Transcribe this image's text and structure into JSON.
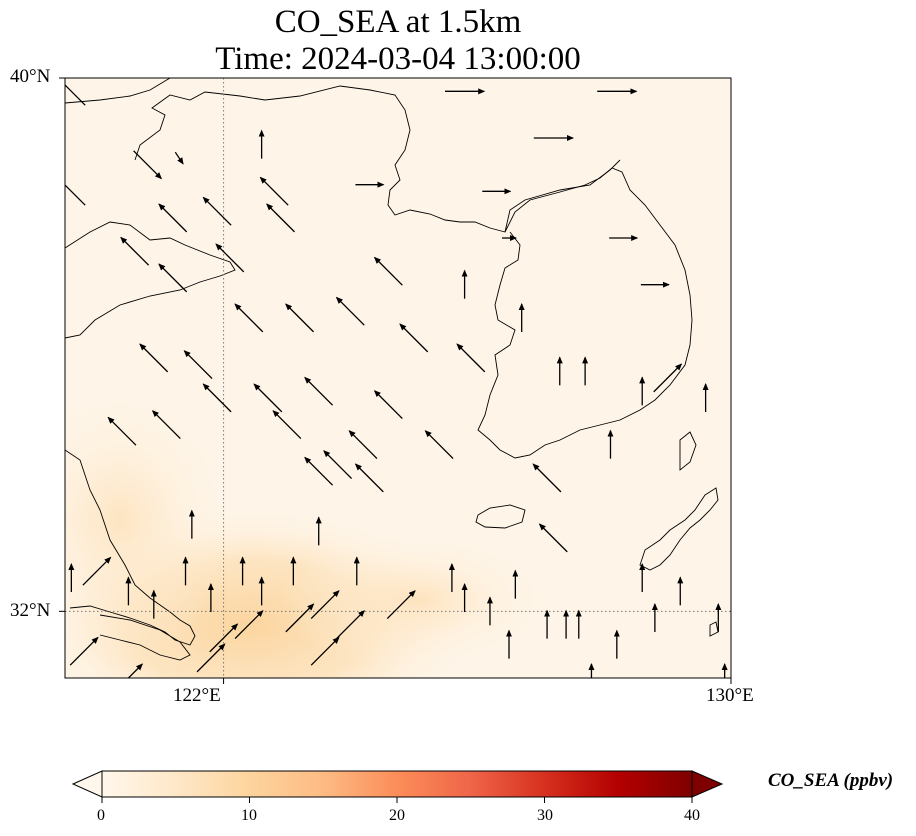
{
  "title": {
    "line1": "CO_SEA at 1.5km",
    "line2": "Time: 2024-03-04 13:00:00"
  },
  "map": {
    "extent": {
      "lon_min": 119.5,
      "lon_max": 130,
      "lat_min": 31.0,
      "lat_max": 40.0
    },
    "gridlines": {
      "lons": [
        122
      ],
      "lats": [
        32
      ],
      "style": "dotted"
    },
    "lon_ticks": [
      {
        "value": 122,
        "label": "122°E"
      },
      {
        "value": 130,
        "label": "130°E"
      }
    ],
    "lat_ticks": [
      {
        "value": 40,
        "label": "40°N"
      },
      {
        "value": 32,
        "label": "32°N"
      }
    ],
    "field_colors": {
      "ocean_background": "#fef5e8",
      "elevated_plume": "#fde0b6",
      "peak_plume": "#fbd39b"
    },
    "coastline_color": "#000000",
    "wind_vectors": [
      {
        "lon": 119.6,
        "lat": 39.8,
        "u": -1,
        "v": 1
      },
      {
        "lon": 122.6,
        "lat": 39.0,
        "u": 0,
        "v": 1
      },
      {
        "lon": 125.8,
        "lat": 39.8,
        "u": 3,
        "v": 0
      },
      {
        "lon": 128.2,
        "lat": 39.8,
        "u": 2,
        "v": 0
      },
      {
        "lon": 127.2,
        "lat": 39.1,
        "u": 2,
        "v": 0
      },
      {
        "lon": 119.6,
        "lat": 38.3,
        "u": -1,
        "v": 1
      },
      {
        "lon": 120.8,
        "lat": 38.7,
        "u": 1,
        "v": -1
      },
      {
        "lon": 121.3,
        "lat": 38.8,
        "u": 0.2,
        "v": -0.3
      },
      {
        "lon": 122.8,
        "lat": 38.3,
        "u": -1,
        "v": 1
      },
      {
        "lon": 124.3,
        "lat": 38.4,
        "u": 1,
        "v": 0
      },
      {
        "lon": 126.3,
        "lat": 38.3,
        "u": 1,
        "v": 0
      },
      {
        "lon": 121.2,
        "lat": 37.9,
        "u": -1,
        "v": 1
      },
      {
        "lon": 121.9,
        "lat": 38.0,
        "u": -1,
        "v": 1
      },
      {
        "lon": 122.9,
        "lat": 37.9,
        "u": -1,
        "v": 1
      },
      {
        "lon": 126.5,
        "lat": 37.6,
        "u": 0.5,
        "v": 0
      },
      {
        "lon": 128.3,
        "lat": 37.6,
        "u": 1,
        "v": 0
      },
      {
        "lon": 120.6,
        "lat": 37.4,
        "u": -1,
        "v": 1
      },
      {
        "lon": 122.1,
        "lat": 37.3,
        "u": -1,
        "v": 1
      },
      {
        "lon": 121.2,
        "lat": 37.0,
        "u": -1,
        "v": 1
      },
      {
        "lon": 124.6,
        "lat": 37.1,
        "u": -1,
        "v": 1
      },
      {
        "lon": 125.8,
        "lat": 36.9,
        "u": 0,
        "v": 1
      },
      {
        "lon": 128.8,
        "lat": 36.9,
        "u": 1,
        "v": 0
      },
      {
        "lon": 122.4,
        "lat": 36.4,
        "u": -1,
        "v": 1
      },
      {
        "lon": 123.2,
        "lat": 36.4,
        "u": -1,
        "v": 1
      },
      {
        "lon": 124.0,
        "lat": 36.5,
        "u": -1,
        "v": 1
      },
      {
        "lon": 125.0,
        "lat": 36.1,
        "u": -1,
        "v": 1
      },
      {
        "lon": 126.7,
        "lat": 36.4,
        "u": 0,
        "v": 1
      },
      {
        "lon": 120.9,
        "lat": 35.8,
        "u": -1,
        "v": 1
      },
      {
        "lon": 121.6,
        "lat": 35.7,
        "u": -1,
        "v": 1
      },
      {
        "lon": 125.9,
        "lat": 35.8,
        "u": -1,
        "v": 1
      },
      {
        "lon": 127.3,
        "lat": 35.6,
        "u": 0,
        "v": 1
      },
      {
        "lon": 127.7,
        "lat": 35.6,
        "u": 0,
        "v": 1
      },
      {
        "lon": 129.0,
        "lat": 35.5,
        "u": 1,
        "v": 1
      },
      {
        "lon": 121.9,
        "lat": 35.2,
        "u": -1,
        "v": 1
      },
      {
        "lon": 122.7,
        "lat": 35.2,
        "u": -1,
        "v": 1
      },
      {
        "lon": 123.5,
        "lat": 35.3,
        "u": -1,
        "v": 1
      },
      {
        "lon": 124.6,
        "lat": 35.1,
        "u": -1,
        "v": 1
      },
      {
        "lon": 128.6,
        "lat": 35.3,
        "u": 0,
        "v": 1
      },
      {
        "lon": 129.6,
        "lat": 35.2,
        "u": 0,
        "v": 1
      },
      {
        "lon": 120.4,
        "lat": 34.7,
        "u": -1,
        "v": 1
      },
      {
        "lon": 121.1,
        "lat": 34.8,
        "u": -1,
        "v": 1
      },
      {
        "lon": 123.0,
        "lat": 34.8,
        "u": -1,
        "v": 1
      },
      {
        "lon": 124.2,
        "lat": 34.5,
        "u": -1,
        "v": 1
      },
      {
        "lon": 125.4,
        "lat": 34.5,
        "u": -1,
        "v": 1
      },
      {
        "lon": 128.1,
        "lat": 34.5,
        "u": 0,
        "v": 1
      },
      {
        "lon": 123.5,
        "lat": 34.1,
        "u": -1,
        "v": 1
      },
      {
        "lon": 123.8,
        "lat": 34.2,
        "u": -1,
        "v": 1
      },
      {
        "lon": 124.3,
        "lat": 34.0,
        "u": -1,
        "v": 1
      },
      {
        "lon": 127.1,
        "lat": 34.0,
        "u": -1,
        "v": 1
      },
      {
        "lon": 121.5,
        "lat": 33.3,
        "u": 0,
        "v": 1
      },
      {
        "lon": 123.5,
        "lat": 33.2,
        "u": 0,
        "v": 1
      },
      {
        "lon": 127.2,
        "lat": 33.1,
        "u": -1,
        "v": 1
      },
      {
        "lon": 121.4,
        "lat": 32.6,
        "u": 0,
        "v": 1
      },
      {
        "lon": 122.3,
        "lat": 32.6,
        "u": 0,
        "v": 1
      },
      {
        "lon": 123.1,
        "lat": 32.6,
        "u": 0,
        "v": 1
      },
      {
        "lon": 124.1,
        "lat": 32.6,
        "u": 0,
        "v": 1
      },
      {
        "lon": 125.6,
        "lat": 32.5,
        "u": 0,
        "v": 1
      },
      {
        "lon": 126.6,
        "lat": 32.4,
        "u": 0,
        "v": 1
      },
      {
        "lon": 128.6,
        "lat": 32.5,
        "u": 0,
        "v": 1
      },
      {
        "lon": 129.2,
        "lat": 32.3,
        "u": 0,
        "v": 1
      },
      {
        "lon": 119.6,
        "lat": 32.5,
        "u": 0,
        "v": 1
      },
      {
        "lon": 120.0,
        "lat": 32.6,
        "u": 1,
        "v": 1
      },
      {
        "lon": 120.5,
        "lat": 32.3,
        "u": 0,
        "v": 1
      },
      {
        "lon": 120.9,
        "lat": 32.1,
        "u": 0,
        "v": 1
      },
      {
        "lon": 121.8,
        "lat": 32.2,
        "u": 0,
        "v": 1
      },
      {
        "lon": 122.6,
        "lat": 32.3,
        "u": 0,
        "v": 1
      },
      {
        "lon": 123.6,
        "lat": 32.1,
        "u": 1,
        "v": 1
      },
      {
        "lon": 124.8,
        "lat": 32.1,
        "u": 1,
        "v": 1
      },
      {
        "lon": 125.8,
        "lat": 32.2,
        "u": 0,
        "v": 1
      },
      {
        "lon": 126.2,
        "lat": 32.0,
        "u": 0,
        "v": 1
      },
      {
        "lon": 127.1,
        "lat": 31.8,
        "u": 0,
        "v": 1
      },
      {
        "lon": 127.4,
        "lat": 31.8,
        "u": 0,
        "v": 1
      },
      {
        "lon": 127.6,
        "lat": 31.8,
        "u": 0,
        "v": 1
      },
      {
        "lon": 128.8,
        "lat": 31.9,
        "u": 0,
        "v": 1
      },
      {
        "lon": 129.8,
        "lat": 31.9,
        "u": 0,
        "v": 1
      },
      {
        "lon": 122.0,
        "lat": 31.6,
        "u": 1,
        "v": 1
      },
      {
        "lon": 122.4,
        "lat": 31.8,
        "u": 1,
        "v": 1
      },
      {
        "lon": 123.2,
        "lat": 31.9,
        "u": 1,
        "v": 1
      },
      {
        "lon": 124.0,
        "lat": 31.8,
        "u": 1,
        "v": 1
      },
      {
        "lon": 126.5,
        "lat": 31.5,
        "u": 0,
        "v": 1
      },
      {
        "lon": 128.2,
        "lat": 31.5,
        "u": 0,
        "v": 1
      },
      {
        "lon": 119.8,
        "lat": 31.4,
        "u": 1,
        "v": 1
      },
      {
        "lon": 121.8,
        "lat": 31.3,
        "u": 1,
        "v": 1
      },
      {
        "lon": 123.6,
        "lat": 31.4,
        "u": 1,
        "v": 1
      },
      {
        "lon": 120.5,
        "lat": 31.0,
        "u": 1,
        "v": 1
      },
      {
        "lon": 127.8,
        "lat": 31.0,
        "u": 0,
        "v": 1
      },
      {
        "lon": 129.9,
        "lat": 31.0,
        "u": 0,
        "v": 1
      }
    ]
  },
  "colorbar": {
    "label": "CO_SEA (ppbv)",
    "vmin": 0,
    "vmax": 40,
    "extend": "both",
    "cmap": "OrRd",
    "colors": [
      "#fff7ec",
      "#fee8c8",
      "#fdd49e",
      "#fdbb84",
      "#fc8d59",
      "#ef6548",
      "#d7301f",
      "#b30000",
      "#7f0000"
    ],
    "ticks": [
      {
        "value": 0,
        "label": "0"
      },
      {
        "value": 10,
        "label": "10"
      },
      {
        "value": 20,
        "label": "20"
      },
      {
        "value": 30,
        "label": "30"
      },
      {
        "value": 40,
        "label": "40"
      }
    ]
  }
}
